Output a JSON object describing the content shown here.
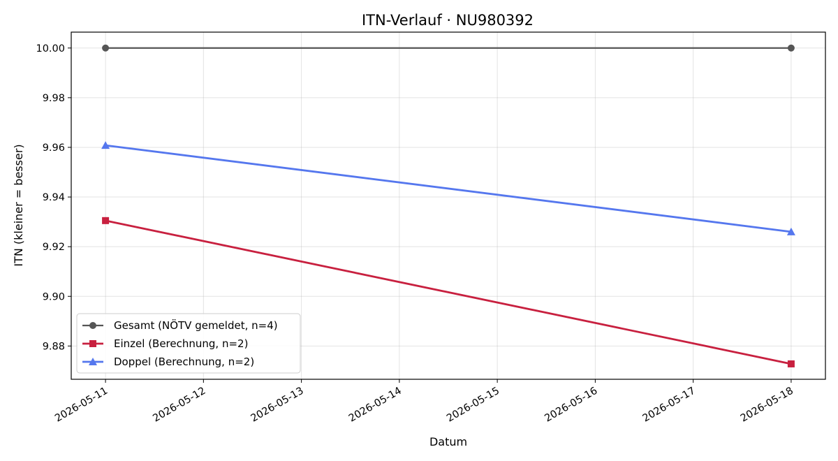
{
  "chart_data": {
    "type": "line",
    "title": "ITN-Verlauf · NU980392",
    "xlabel": "Datum",
    "ylabel": "ITN  (kleiner = besser)",
    "x_ticks": [
      "2026-05-11",
      "2026-05-12",
      "2026-05-13",
      "2026-05-14",
      "2026-05-15",
      "2026-05-16",
      "2026-05-17",
      "2026-05-18"
    ],
    "y_ticks": [
      "9.88",
      "9.90",
      "9.92",
      "9.94",
      "9.96",
      "9.98",
      "10.00"
    ],
    "xlim": [
      "2026-05-10T15:36",
      "2026-05-18T08:24"
    ],
    "ylim": [
      9.8666,
      10.0064
    ],
    "grid": true,
    "legend_position": "lower-left",
    "series": [
      {
        "name": "Gesamt (NÖTV gemeldet, n=4)",
        "color": "#555555",
        "marker": "circle",
        "x": [
          "2026-05-11",
          "2026-05-18"
        ],
        "values": [
          10.0,
          10.0
        ]
      },
      {
        "name": "Einzel (Berechnung, n=2)",
        "color": "#c8203f",
        "marker": "square",
        "x": [
          "2026-05-11",
          "2026-05-18"
        ],
        "values": [
          9.9305,
          9.8728
        ]
      },
      {
        "name": "Doppel (Berechnung, n=2)",
        "color": "#5577ee",
        "marker": "triangle",
        "x": [
          "2026-05-11",
          "2026-05-18"
        ],
        "values": [
          9.9608,
          9.926
        ]
      }
    ]
  }
}
